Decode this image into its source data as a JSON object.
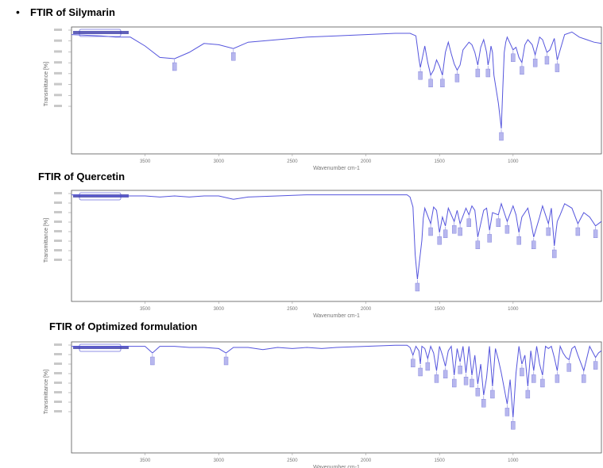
{
  "bullet": "•",
  "chart_data": [
    {
      "type": "line",
      "title": "FTIR of Silymarin",
      "ylabel": "Transmittance [%]",
      "xlabel": "Wavenumber cm-1",
      "x_direction": "decreasing",
      "xlim": [
        4000,
        400
      ],
      "x_tick_labels": [
        "3500",
        "3000",
        "2500",
        "2000",
        "1500",
        "1000"
      ],
      "series": [
        {
          "x": [
            4000,
            3800,
            3700,
            3600,
            3500,
            3400,
            3300,
            3200,
            3100,
            3000,
            2900,
            2800,
            2600,
            2400,
            2200,
            2000,
            1800,
            1700,
            1660,
            1640,
            1630,
            1600,
            1580,
            1560,
            1540,
            1520,
            1500,
            1480,
            1460,
            1440,
            1420,
            1400,
            1380,
            1360,
            1340,
            1300,
            1280,
            1260,
            1240,
            1220,
            1200,
            1180,
            1170,
            1160,
            1150,
            1140,
            1130,
            1100,
            1080,
            1070,
            1060,
            1050,
            1040,
            1000,
            980,
            960,
            940,
            920,
            900,
            870,
            850,
            820,
            800,
            770,
            750,
            720,
            700,
            650,
            600,
            550,
            500,
            450,
            400
          ],
          "y": [
            94,
            93,
            92,
            92,
            85,
            76,
            75,
            80,
            87,
            86,
            83,
            88,
            90,
            92,
            93,
            94,
            95,
            95,
            93,
            75,
            68,
            85,
            72,
            62,
            66,
            74,
            69,
            62,
            80,
            88,
            79,
            71,
            66,
            70,
            82,
            88,
            86,
            80,
            70,
            84,
            90,
            80,
            70,
            76,
            85,
            80,
            62,
            40,
            20,
            52,
            80,
            88,
            92,
            82,
            84,
            76,
            72,
            86,
            90,
            86,
            78,
            92,
            90,
            80,
            82,
            91,
            74,
            94,
            96,
            92,
            90,
            88,
            87
          ]
        }
      ]
    },
    {
      "type": "line",
      "title": "FTIR of Quercetin",
      "ylabel": "Transmittance [%]",
      "xlabel": "Wavenumber cm-1",
      "x_direction": "decreasing",
      "xlim": [
        4000,
        400
      ],
      "x_tick_labels": [
        "3500",
        "3000",
        "2500",
        "2000",
        "1500",
        "1000"
      ],
      "series": [
        {
          "x": [
            4000,
            3800,
            3700,
            3500,
            3400,
            3300,
            3200,
            3100,
            3000,
            2900,
            2800,
            2600,
            2400,
            2200,
            2000,
            1800,
            1720,
            1700,
            1680,
            1665,
            1650,
            1620,
            1610,
            1600,
            1560,
            1540,
            1520,
            1500,
            1480,
            1460,
            1440,
            1400,
            1380,
            1360,
            1320,
            1300,
            1280,
            1260,
            1240,
            1200,
            1180,
            1160,
            1140,
            1100,
            1080,
            1040,
            1000,
            980,
            960,
            940,
            900,
            880,
            860,
            820,
            800,
            780,
            760,
            740,
            720,
            700,
            680,
            650,
            600,
            560,
            520,
            480,
            440,
            400
          ],
          "y": [
            96,
            95,
            95,
            95,
            94,
            95,
            94,
            95,
            95,
            92,
            94,
            95,
            96,
            96,
            96,
            96,
            96,
            94,
            85,
            42,
            20,
            55,
            75,
            84,
            70,
            85,
            82,
            62,
            76,
            68,
            84,
            72,
            82,
            70,
            84,
            78,
            86,
            82,
            58,
            82,
            84,
            64,
            80,
            78,
            88,
            72,
            86,
            78,
            62,
            76,
            84,
            72,
            58,
            76,
            86,
            78,
            70,
            84,
            50,
            72,
            78,
            88,
            84,
            70,
            80,
            76,
            68,
            72
          ]
        }
      ]
    },
    {
      "type": "line",
      "title": "FTIR of Optimized formulation",
      "ylabel": "Transmittance [%]",
      "xlabel": "Wavenumber cm-1",
      "x_direction": "decreasing",
      "xlim": [
        4000,
        400
      ],
      "x_tick_labels": [
        "3500",
        "3000",
        "2500",
        "2000",
        "1500",
        "1000"
      ],
      "series": [
        {
          "x": [
            4000,
            3800,
            3700,
            3600,
            3500,
            3450,
            3400,
            3300,
            3200,
            3100,
            3000,
            2950,
            2900,
            2800,
            2700,
            2600,
            2500,
            2400,
            2300,
            2200,
            2000,
            1800,
            1720,
            1700,
            1680,
            1660,
            1640,
            1630,
            1620,
            1600,
            1580,
            1560,
            1540,
            1520,
            1500,
            1480,
            1460,
            1440,
            1420,
            1400,
            1380,
            1360,
            1340,
            1320,
            1300,
            1280,
            1260,
            1240,
            1220,
            1200,
            1180,
            1160,
            1140,
            1120,
            1100,
            1080,
            1060,
            1040,
            1020,
            1000,
            980,
            960,
            940,
            920,
            900,
            880,
            860,
            840,
            820,
            800,
            780,
            760,
            740,
            720,
            700,
            680,
            660,
            640,
            620,
            600,
            580,
            560,
            520,
            480,
            440,
            420,
            400
          ],
          "y": [
            96,
            95,
            96,
            96,
            96,
            90,
            96,
            96,
            95,
            95,
            94,
            90,
            95,
            95,
            93,
            95,
            94,
            95,
            94,
            95,
            96,
            97,
            97,
            95,
            88,
            96,
            92,
            80,
            96,
            94,
            85,
            96,
            90,
            74,
            96,
            88,
            78,
            92,
            96,
            70,
            94,
            82,
            96,
            72,
            96,
            70,
            88,
            62,
            80,
            52,
            68,
            96,
            60,
            94,
            84,
            72,
            58,
            44,
            66,
            32,
            72,
            96,
            80,
            88,
            60,
            92,
            74,
            96,
            80,
            70,
            96,
            94,
            96,
            86,
            74,
            96,
            90,
            86,
            84,
            94,
            96,
            88,
            74,
            96,
            86,
            90,
            92
          ]
        }
      ]
    }
  ]
}
